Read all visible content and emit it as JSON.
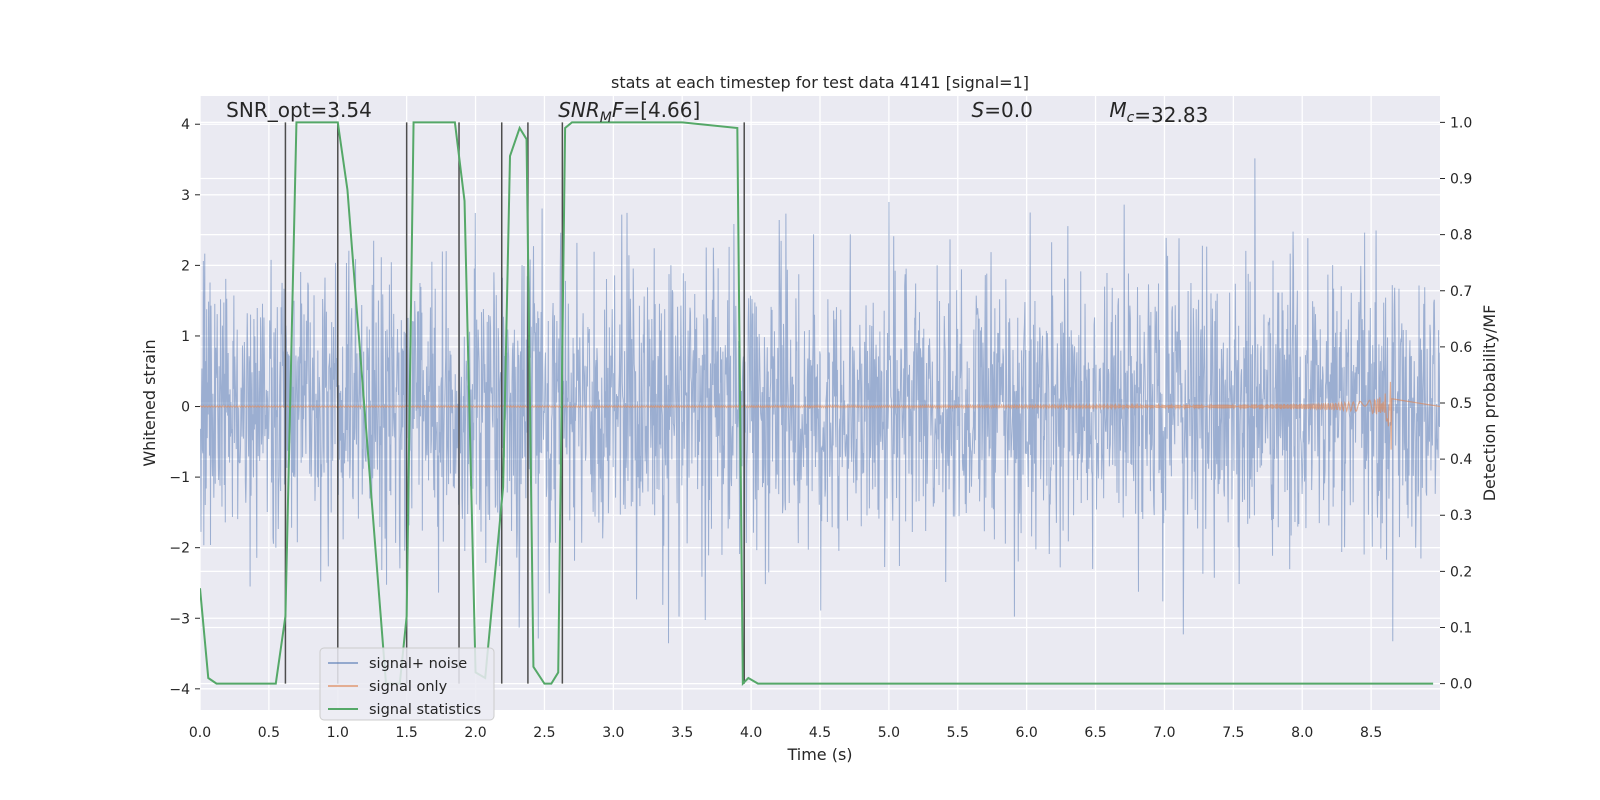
{
  "chart_data": {
    "type": "line",
    "title": "stats at each timestep for test data 4141 [signal=1]",
    "xlabel": "Time (s)",
    "ylabel_left": "Whitened strain",
    "ylabel_right": "Detection probability/MF",
    "xlim": [
      0,
      9.0
    ],
    "ylim_left": [
      -4.3,
      4.4
    ],
    "ylim_right": [
      -0.047,
      1.047
    ],
    "x_ticks": [
      "0.0",
      "0.5",
      "1.0",
      "1.5",
      "2.0",
      "2.5",
      "3.0",
      "3.5",
      "4.0",
      "4.5",
      "5.0",
      "5.5",
      "6.0",
      "6.5",
      "7.0",
      "7.5",
      "8.0",
      "8.5"
    ],
    "x_tick_values": [
      0,
      0.5,
      1.0,
      1.5,
      2.0,
      2.5,
      3.0,
      3.5,
      4.0,
      4.5,
      5.0,
      5.5,
      6.0,
      6.5,
      7.0,
      7.5,
      8.0,
      8.5
    ],
    "y_left_ticks": [
      "−4",
      "−3",
      "−2",
      "−1",
      "0",
      "1",
      "2",
      "3",
      "4"
    ],
    "y_left_tick_values": [
      -4,
      -3,
      -2,
      -1,
      0,
      1,
      2,
      3,
      4
    ],
    "y_right_ticks": [
      "0.0",
      "0.1",
      "0.2",
      "0.3",
      "0.4",
      "0.5",
      "0.6",
      "0.7",
      "0.8",
      "0.9",
      "1.0"
    ],
    "y_right_tick_values": [
      0,
      0.1,
      0.2,
      0.3,
      0.4,
      0.5,
      0.6,
      0.7,
      0.8,
      0.9,
      1.0
    ],
    "annotations": [
      {
        "text": "SNR_opt=3.54",
        "x": 0.19,
        "y": 4.1
      },
      {
        "text": "SNR_MF=[4.66]",
        "x": 2.6,
        "y": 4.1
      },
      {
        "text": "S=0.0",
        "x": 5.6,
        "y": 4.1
      },
      {
        "text": "M_c=32.83",
        "x": 6.6,
        "y": 4.1
      }
    ],
    "legend_position": "lower-left",
    "series": [
      {
        "name": "signal+ noise",
        "color": "#4c72b0",
        "style": "noise-band",
        "band_low": -1.6,
        "band_high": 1.6,
        "extreme_low": -3.9,
        "extreme_high": 4.0
      },
      {
        "name": "signal only",
        "color": "#dd8452",
        "style": "chirp",
        "merger_time": 8.65,
        "peak_amplitude": 0.9
      },
      {
        "name": "signal statistics",
        "color": "#55a868",
        "axis": "right",
        "x": [
          0.0,
          0.06,
          0.12,
          0.3,
          0.55,
          0.62,
          0.7,
          1.0,
          1.07,
          1.35,
          1.45,
          1.5,
          1.55,
          1.85,
          1.92,
          2.0,
          2.07,
          2.2,
          2.25,
          2.32,
          2.37,
          2.42,
          2.5,
          2.55,
          2.6,
          2.65,
          2.7,
          2.9,
          3.5,
          3.9,
          3.94,
          3.98,
          4.05,
          4.5,
          6.0,
          7.5,
          8.5,
          8.95
        ],
        "y": [
          0.17,
          0.01,
          0.0,
          0.0,
          0.0,
          0.12,
          1.0,
          1.0,
          0.88,
          0.0,
          0.0,
          0.12,
          1.0,
          1.0,
          0.86,
          0.02,
          0.01,
          0.35,
          0.94,
          0.99,
          0.97,
          0.03,
          0.0,
          0.0,
          0.02,
          0.99,
          1.0,
          1.0,
          1.0,
          0.99,
          0.0,
          0.01,
          0.0,
          0.0,
          0.0,
          0.0,
          0.0,
          0.0
        ]
      }
    ],
    "vertical_markers": [
      0.62,
      1.0,
      1.5,
      1.88,
      2.19,
      2.38,
      2.63,
      3.95
    ],
    "grid": true,
    "colors": {
      "plot_bg": "#eaeaf2",
      "grid": "#ffffff",
      "marker": "#4d4d4d"
    }
  }
}
